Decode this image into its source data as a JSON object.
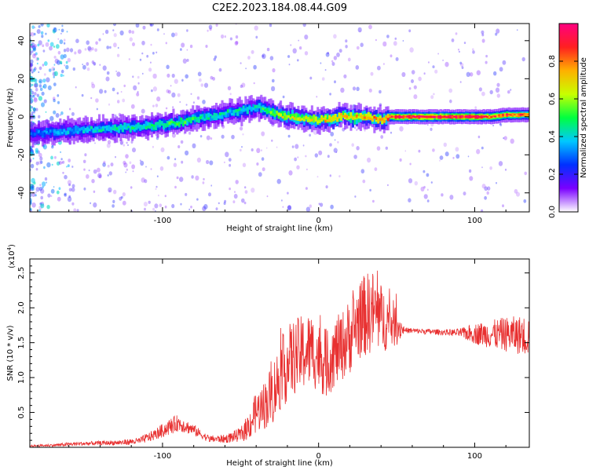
{
  "title": "C2E2.2023.184.08.44.G09",
  "chart_data": [
    {
      "type": "heatmap",
      "xlabel": "Height of straight line (km)",
      "ylabel": "Frequency (Hz)",
      "xlim": [
        -185,
        135
      ],
      "ylim": [
        -50,
        49
      ],
      "xticks": [
        -100,
        0,
        100
      ],
      "yticks": [
        -40,
        -20,
        0,
        20,
        40
      ],
      "xtick_labels": [
        "-100",
        "0",
        "100"
      ],
      "ytick_labels": [
        "-40",
        "-20",
        "0",
        "20",
        "40"
      ],
      "colorbar": {
        "label": "Normalized spectral amplitude",
        "range": [
          0,
          1
        ],
        "ticks": [
          0.0,
          0.2,
          0.4,
          0.6,
          0.8
        ],
        "tick_labels": [
          "0.0",
          "0.2",
          "0.4",
          "0.6",
          "0.8"
        ],
        "colors": [
          "#ffffff",
          "#7a00ff",
          "#0030ff",
          "#00c8ff",
          "#00ff40",
          "#c8ff00",
          "#ffb000",
          "#ff2020",
          "#ff0080"
        ]
      },
      "ridge": {
        "x": [
          -185,
          -170,
          -150,
          -130,
          -110,
          -100,
          -90,
          -80,
          -70,
          -60,
          -50,
          -40,
          -35,
          -30,
          -20,
          -10,
          0,
          10,
          15,
          20,
          30,
          40,
          45,
          50,
          60,
          80,
          100,
          110,
          120,
          135
        ],
        "y": [
          -9,
          -8,
          -7,
          -6,
          -5,
          -4,
          -3,
          -1,
          0,
          2,
          3,
          5,
          4,
          2,
          0,
          -1,
          -2,
          -1,
          1,
          0,
          0,
          -2,
          0,
          0,
          0,
          0,
          0,
          0,
          1,
          1
        ],
        "amplitude": [
          0.3,
          0.35,
          0.4,
          0.45,
          0.5,
          0.5,
          0.55,
          0.5,
          0.45,
          0.45,
          0.45,
          0.45,
          0.55,
          0.6,
          0.7,
          0.7,
          0.7,
          0.75,
          0.75,
          0.75,
          0.8,
          0.75,
          0.9,
          1.0,
          1.0,
          1.0,
          1.0,
          0.9,
          0.9,
          0.85
        ]
      }
    },
    {
      "type": "line",
      "xlabel": "Height of straight line (km)",
      "ylabel": "SNR (10 * v/v)",
      "y_multiplier": "(x10",
      "y_multiplier_exp": "4",
      "y_multiplier_close": ")",
      "xlim": [
        -185,
        135
      ],
      "ylim": [
        0,
        2.7
      ],
      "xticks": [
        -100,
        0,
        100
      ],
      "yticks": [
        0.5,
        1.0,
        1.5,
        2.0,
        2.5
      ],
      "xtick_labels": [
        "-100",
        "0",
        "100"
      ],
      "ytick_labels": [
        "0.5",
        "1.0",
        "1.5",
        "2.0",
        "2.5"
      ],
      "color": "#e83030",
      "x": [
        -185,
        -170,
        -155,
        -140,
        -125,
        -115,
        -105,
        -95,
        -90,
        -85,
        -80,
        -75,
        -70,
        -60,
        -50,
        -45,
        -40,
        -35,
        -30,
        -25,
        -20,
        -15,
        -10,
        -5,
        0,
        5,
        10,
        15,
        20,
        25,
        30,
        35,
        40,
        45,
        50,
        55,
        60,
        70,
        80,
        90,
        100,
        110,
        120,
        135
      ],
      "y": [
        0.02,
        0.03,
        0.05,
        0.06,
        0.07,
        0.09,
        0.18,
        0.3,
        0.35,
        0.3,
        0.25,
        0.18,
        0.12,
        0.12,
        0.18,
        0.3,
        0.5,
        0.6,
        0.75,
        1.0,
        1.2,
        1.3,
        1.35,
        1.4,
        1.3,
        1.2,
        1.35,
        1.45,
        1.6,
        1.8,
        1.9,
        1.95,
        1.85,
        1.8,
        1.75,
        1.68,
        1.67,
        1.66,
        1.65,
        1.64,
        1.63,
        1.62,
        1.62,
        1.6
      ],
      "noise": [
        0.01,
        0.02,
        0.03,
        0.03,
        0.04,
        0.05,
        0.08,
        0.12,
        0.12,
        0.1,
        0.08,
        0.06,
        0.05,
        0.06,
        0.1,
        0.2,
        0.3,
        0.35,
        0.45,
        0.5,
        0.55,
        0.55,
        0.55,
        0.55,
        0.5,
        0.5,
        0.5,
        0.5,
        0.55,
        0.55,
        0.6,
        0.6,
        0.5,
        0.4,
        0.3,
        0.04,
        0.04,
        0.04,
        0.04,
        0.06,
        0.15,
        0.2,
        0.25,
        0.3
      ]
    }
  ]
}
